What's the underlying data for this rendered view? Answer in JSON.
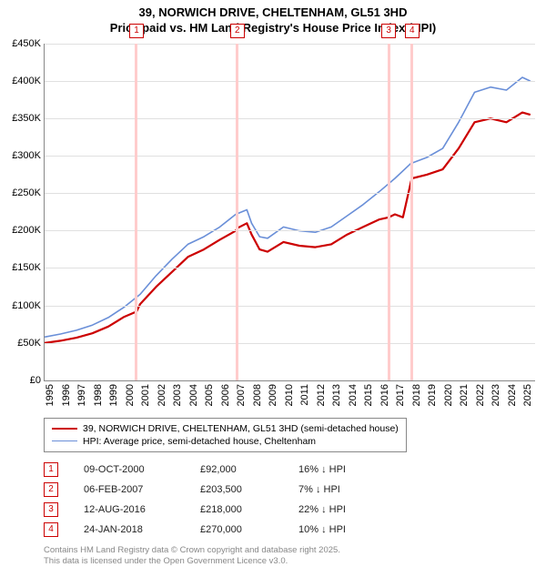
{
  "title_line1": "39, NORWICH DRIVE, CHELTENHAM, GL51 3HD",
  "title_line2": "Price paid vs. HM Land Registry's House Price Index (HPI)",
  "chart": {
    "type": "line",
    "background_color": "#ffffff",
    "grid_color": "#e0e0e0",
    "axis_color": "#888888",
    "x_min": 1995,
    "x_max": 2025.8,
    "x_ticks": [
      1995,
      1996,
      1997,
      1998,
      1999,
      2000,
      2001,
      2002,
      2003,
      2004,
      2005,
      2006,
      2007,
      2008,
      2009,
      2010,
      2011,
      2012,
      2013,
      2014,
      2015,
      2016,
      2017,
      2018,
      2019,
      2020,
      2021,
      2022,
      2023,
      2024,
      2025
    ],
    "y_min": 0,
    "y_max": 450000,
    "y_tick_step": 50000,
    "y_tick_labels": [
      "£0",
      "£50K",
      "£100K",
      "£150K",
      "£200K",
      "£250K",
      "£300K",
      "£350K",
      "£400K",
      "£450K"
    ],
    "label_fontsize": 11,
    "marker_line_color": "#ffcccc",
    "marker_border_color": "#cc0000",
    "series": [
      {
        "name": "39, NORWICH DRIVE, CHELTENHAM, GL51 3HD (semi-detached house)",
        "color": "#cc0000",
        "line_width": 2.2,
        "data": [
          [
            1995,
            50000
          ],
          [
            1996,
            53000
          ],
          [
            1997,
            57000
          ],
          [
            1998,
            63000
          ],
          [
            1999,
            72000
          ],
          [
            2000,
            85000
          ],
          [
            2000.77,
            92000
          ],
          [
            2001,
            102000
          ],
          [
            2002,
            125000
          ],
          [
            2003,
            145000
          ],
          [
            2004,
            165000
          ],
          [
            2005,
            175000
          ],
          [
            2006,
            188000
          ],
          [
            2007,
            200000
          ],
          [
            2007.1,
            203500
          ],
          [
            2007.7,
            210000
          ],
          [
            2008,
            195000
          ],
          [
            2008.5,
            175000
          ],
          [
            2009,
            172000
          ],
          [
            2010,
            185000
          ],
          [
            2011,
            180000
          ],
          [
            2012,
            178000
          ],
          [
            2013,
            182000
          ],
          [
            2014,
            195000
          ],
          [
            2015,
            205000
          ],
          [
            2016,
            215000
          ],
          [
            2016.61,
            218000
          ],
          [
            2017,
            222000
          ],
          [
            2017.5,
            218000
          ],
          [
            2018,
            265000
          ],
          [
            2018.07,
            270000
          ],
          [
            2019,
            275000
          ],
          [
            2020,
            282000
          ],
          [
            2021,
            310000
          ],
          [
            2022,
            345000
          ],
          [
            2023,
            350000
          ],
          [
            2024,
            345000
          ],
          [
            2025,
            358000
          ],
          [
            2025.5,
            355000
          ]
        ]
      },
      {
        "name": "HPI: Average price, semi-detached house, Cheltenham",
        "color": "#6a8fd8",
        "line_width": 1.6,
        "data": [
          [
            1995,
            58000
          ],
          [
            1996,
            62000
          ],
          [
            1997,
            67000
          ],
          [
            1998,
            74000
          ],
          [
            1999,
            84000
          ],
          [
            2000,
            98000
          ],
          [
            2001,
            115000
          ],
          [
            2002,
            140000
          ],
          [
            2003,
            162000
          ],
          [
            2004,
            182000
          ],
          [
            2005,
            192000
          ],
          [
            2006,
            205000
          ],
          [
            2007,
            222000
          ],
          [
            2007.7,
            228000
          ],
          [
            2008,
            210000
          ],
          [
            2008.5,
            192000
          ],
          [
            2009,
            190000
          ],
          [
            2010,
            205000
          ],
          [
            2011,
            200000
          ],
          [
            2012,
            198000
          ],
          [
            2013,
            205000
          ],
          [
            2014,
            220000
          ],
          [
            2015,
            235000
          ],
          [
            2016,
            252000
          ],
          [
            2017,
            270000
          ],
          [
            2018,
            290000
          ],
          [
            2019,
            298000
          ],
          [
            2020,
            310000
          ],
          [
            2021,
            345000
          ],
          [
            2022,
            385000
          ],
          [
            2023,
            392000
          ],
          [
            2024,
            388000
          ],
          [
            2025,
            405000
          ],
          [
            2025.5,
            400000
          ]
        ]
      }
    ],
    "markers": [
      {
        "n": "1",
        "x": 2000.77
      },
      {
        "n": "2",
        "x": 2007.1
      },
      {
        "n": "3",
        "x": 2016.61
      },
      {
        "n": "4",
        "x": 2018.07
      }
    ]
  },
  "legend": {
    "items": [
      {
        "color": "#cc0000",
        "width": 2.2,
        "label": "39, NORWICH DRIVE, CHELTENHAM, GL51 3HD (semi-detached house)"
      },
      {
        "color": "#6a8fd8",
        "width": 1.6,
        "label": "HPI: Average price, semi-detached house, Cheltenham"
      }
    ]
  },
  "sales": [
    {
      "n": "1",
      "date": "09-OCT-2000",
      "price": "£92,000",
      "diff": "16% ↓ HPI"
    },
    {
      "n": "2",
      "date": "06-FEB-2007",
      "price": "£203,500",
      "diff": "7% ↓ HPI"
    },
    {
      "n": "3",
      "date": "12-AUG-2016",
      "price": "£218,000",
      "diff": "22% ↓ HPI"
    },
    {
      "n": "4",
      "date": "24-JAN-2018",
      "price": "£270,000",
      "diff": "10% ↓ HPI"
    }
  ],
  "footnote_line1": "Contains HM Land Registry data © Crown copyright and database right 2025.",
  "footnote_line2": "This data is licensed under the Open Government Licence v3.0."
}
